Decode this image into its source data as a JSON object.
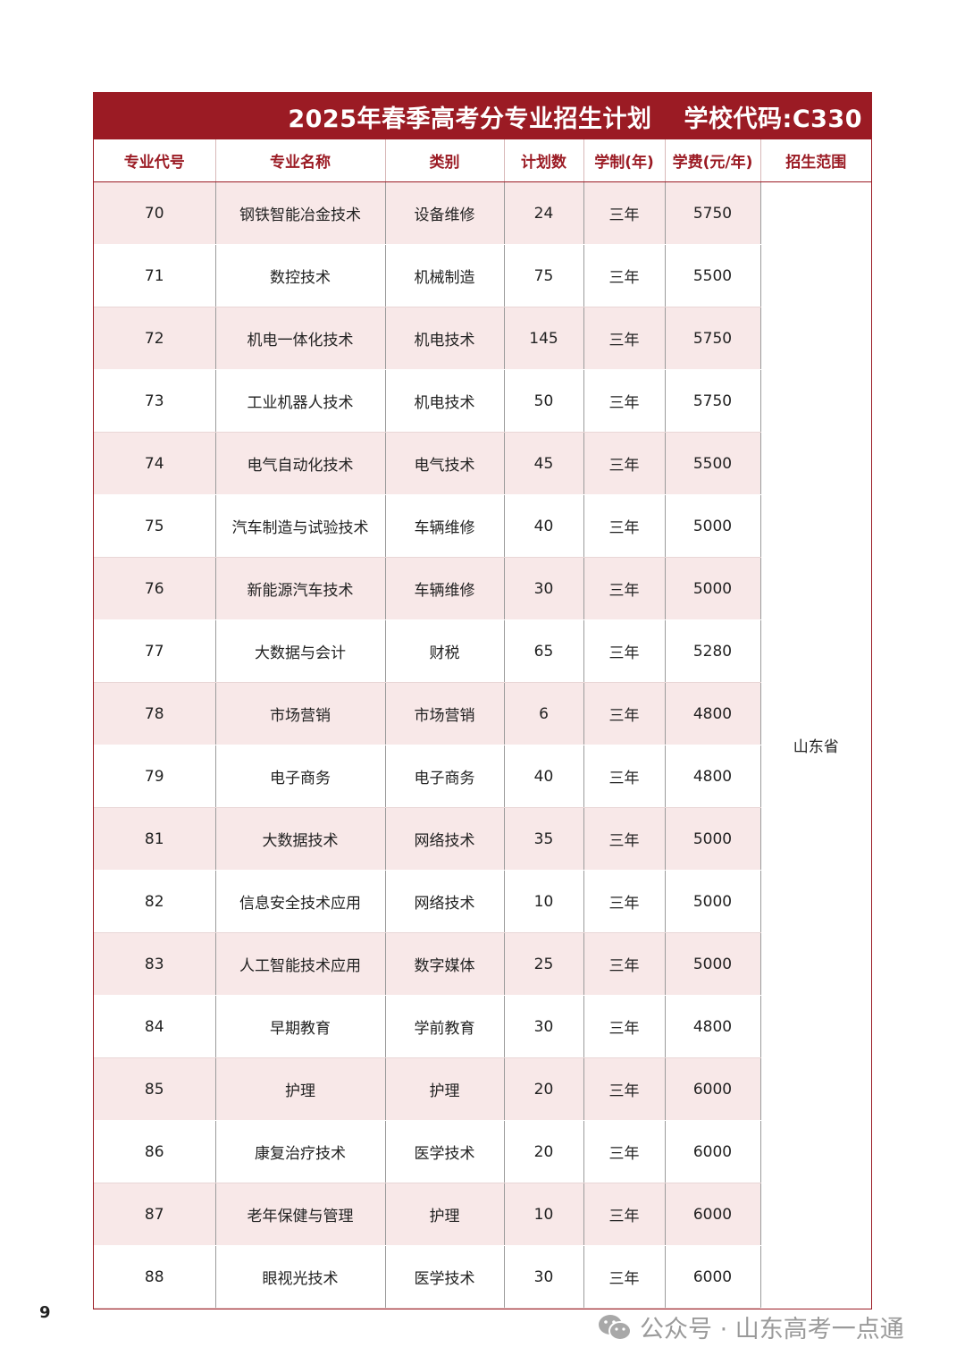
{
  "title": {
    "main": "2025年春季高考分专业招生计划",
    "school_code": "学校代码:C330"
  },
  "columns": [
    "专业代号",
    "专业名称",
    "类别",
    "计划数",
    "学制(年)",
    "学费(元/年)",
    "招生范围"
  ],
  "scope": "山东省",
  "rows": [
    [
      "70",
      "钢铁智能冶金技术",
      "设备维修",
      "24",
      "三年",
      "5750"
    ],
    [
      "71",
      "数控技术",
      "机械制造",
      "75",
      "三年",
      "5500"
    ],
    [
      "72",
      "机电一体化技术",
      "机电技术",
      "145",
      "三年",
      "5750"
    ],
    [
      "73",
      "工业机器人技术",
      "机电技术",
      "50",
      "三年",
      "5750"
    ],
    [
      "74",
      "电气自动化技术",
      "电气技术",
      "45",
      "三年",
      "5500"
    ],
    [
      "75",
      "汽车制造与试验技术",
      "车辆维修",
      "40",
      "三年",
      "5000"
    ],
    [
      "76",
      "新能源汽车技术",
      "车辆维修",
      "30",
      "三年",
      "5000"
    ],
    [
      "77",
      "大数据与会计",
      "财税",
      "65",
      "三年",
      "5280"
    ],
    [
      "78",
      "市场营销",
      "市场营销",
      "6",
      "三年",
      "4800"
    ],
    [
      "79",
      "电子商务",
      "电子商务",
      "40",
      "三年",
      "4800"
    ],
    [
      "81",
      "大数据技术",
      "网络技术",
      "35",
      "三年",
      "5000"
    ],
    [
      "82",
      "信息安全技术应用",
      "网络技术",
      "10",
      "三年",
      "5000"
    ],
    [
      "83",
      "人工智能技术应用",
      "数字媒体",
      "25",
      "三年",
      "5000"
    ],
    [
      "84",
      "早期教育",
      "学前教育",
      "30",
      "三年",
      "4800"
    ],
    [
      "85",
      "护理",
      "护理",
      "20",
      "三年",
      "6000"
    ],
    [
      "86",
      "康复治疗技术",
      "医学技术",
      "20",
      "三年",
      "6000"
    ],
    [
      "87",
      "老年保健与管理",
      "护理",
      "10",
      "三年",
      "6000"
    ],
    [
      "88",
      "眼视光技术",
      "医学技术",
      "30",
      "三年",
      "6000"
    ]
  ],
  "page_number": "9",
  "footer": {
    "icon": "wechat-icon",
    "text": "公众号 · 山东高考一点通"
  },
  "colors": {
    "accent": "#9b1b24",
    "row_stripe": "#f8e8e8"
  }
}
